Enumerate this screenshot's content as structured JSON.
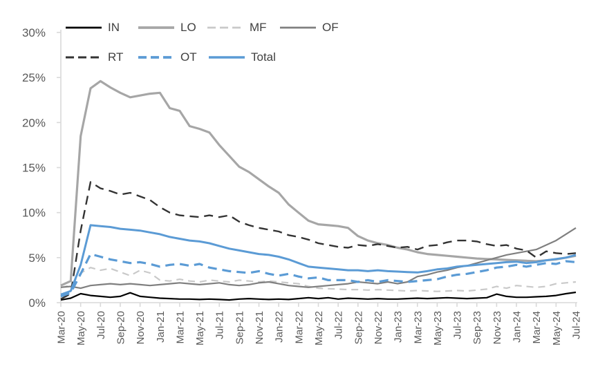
{
  "chart_data": {
    "type": "line",
    "title": "",
    "xlabel": "",
    "ylabel": "",
    "ylim": [
      0,
      30
    ],
    "yticks": [
      "0%",
      "5%",
      "10%",
      "15%",
      "20%",
      "25%",
      "30%"
    ],
    "x_label_interval": 2,
    "grid": false,
    "legend_position": "top",
    "axis_color": "#d9d9d9",
    "tick_label_color": "#595959",
    "legend_text_color": "#404040",
    "x": [
      "Mar-20",
      "Apr-20",
      "May-20",
      "Jun-20",
      "Jul-20",
      "Aug-20",
      "Sep-20",
      "Oct-20",
      "Nov-20",
      "Dec-20",
      "Jan-21",
      "Feb-21",
      "Mar-21",
      "Apr-21",
      "May-21",
      "Jun-21",
      "Jul-21",
      "Aug-21",
      "Sep-21",
      "Oct-21",
      "Nov-21",
      "Dec-21",
      "Jan-22",
      "Feb-22",
      "Mar-22",
      "Apr-22",
      "May-22",
      "Jun-22",
      "Jul-22",
      "Aug-22",
      "Sep-22",
      "Oct-22",
      "Nov-22",
      "Dec-22",
      "Jan-23",
      "Feb-23",
      "Mar-23",
      "Apr-23",
      "May-23",
      "Jun-23",
      "Jul-23",
      "Aug-23",
      "Sep-23",
      "Oct-23",
      "Nov-23",
      "Dec-23",
      "Jan-24",
      "Feb-24",
      "Mar-24",
      "Apr-24",
      "May-24",
      "Jun-24",
      "Jul-24"
    ],
    "series": [
      {
        "name": "IN",
        "color": "#000000",
        "dash": "none",
        "width": 2.2,
        "values": [
          0.3,
          0.5,
          1.0,
          0.8,
          0.7,
          0.6,
          0.7,
          1.1,
          0.7,
          0.6,
          0.5,
          0.45,
          0.4,
          0.4,
          0.35,
          0.4,
          0.35,
          0.3,
          0.4,
          0.45,
          0.4,
          0.35,
          0.4,
          0.35,
          0.45,
          0.55,
          0.45,
          0.55,
          0.4,
          0.5,
          0.45,
          0.4,
          0.45,
          0.4,
          0.4,
          0.45,
          0.5,
          0.45,
          0.5,
          0.55,
          0.5,
          0.45,
          0.5,
          0.55,
          0.95,
          0.7,
          0.6,
          0.6,
          0.65,
          0.7,
          0.8,
          1.0,
          1.15
        ]
      },
      {
        "name": "LO",
        "color": "#a6a6a6",
        "dash": "none",
        "width": 3.2,
        "values": [
          1.9,
          2.4,
          18.5,
          23.8,
          24.6,
          23.9,
          23.3,
          22.8,
          23.0,
          23.2,
          23.3,
          21.6,
          21.3,
          19.6,
          19.3,
          18.9,
          17.5,
          16.3,
          15.1,
          14.5,
          13.7,
          12.9,
          12.2,
          10.9,
          10.0,
          9.1,
          8.7,
          8.6,
          8.5,
          8.3,
          7.4,
          6.9,
          6.6,
          6.4,
          6.1,
          5.9,
          5.6,
          5.4,
          5.3,
          5.2,
          5.1,
          5.0,
          4.9,
          4.85,
          4.8,
          4.75,
          4.7,
          4.65,
          4.6,
          4.7,
          4.8,
          5.0,
          5.2
        ]
      },
      {
        "name": "MF",
        "color": "#c9c9c9",
        "dash": "10 7",
        "width": 2.2,
        "values": [
          1.7,
          1.9,
          3.3,
          3.9,
          3.6,
          3.8,
          3.4,
          3.0,
          3.6,
          3.3,
          2.5,
          2.4,
          2.6,
          2.4,
          2.3,
          2.5,
          2.4,
          2.3,
          2.5,
          2.4,
          2.3,
          2.4,
          2.3,
          2.2,
          2.1,
          1.8,
          1.6,
          1.55,
          1.5,
          1.45,
          1.45,
          1.4,
          1.45,
          1.4,
          1.35,
          1.3,
          1.35,
          1.3,
          1.25,
          1.3,
          1.35,
          1.3,
          1.4,
          1.5,
          1.8,
          1.6,
          1.9,
          1.8,
          1.7,
          1.8,
          2.1,
          2.2,
          2.3
        ]
      },
      {
        "name": "OF",
        "color": "#7f7f7f",
        "dash": "none",
        "width": 2.2,
        "values": [
          1.7,
          1.8,
          1.6,
          1.9,
          2.0,
          2.1,
          2.0,
          2.1,
          2.0,
          1.9,
          2.0,
          2.1,
          2.2,
          2.1,
          2.0,
          2.1,
          2.2,
          2.0,
          1.9,
          2.0,
          2.2,
          2.3,
          2.1,
          1.9,
          1.8,
          1.7,
          1.8,
          1.9,
          2.0,
          2.1,
          2.3,
          2.2,
          2.1,
          2.3,
          2.1,
          2.3,
          2.9,
          3.1,
          3.4,
          3.6,
          3.9,
          4.1,
          4.4,
          4.7,
          5.0,
          5.3,
          5.5,
          5.7,
          5.9,
          6.4,
          6.9,
          7.6,
          8.3
        ]
      },
      {
        "name": "RT",
        "color": "#333333",
        "dash": "13 8",
        "width": 2.4,
        "values": [
          0.4,
          1.0,
          8.0,
          13.4,
          12.7,
          12.4,
          12.0,
          12.2,
          11.8,
          11.4,
          10.6,
          10.0,
          9.7,
          9.6,
          9.5,
          9.7,
          9.5,
          9.7,
          9.0,
          8.6,
          8.3,
          8.1,
          7.9,
          7.5,
          7.3,
          7.0,
          6.6,
          6.4,
          6.2,
          6.1,
          6.4,
          6.3,
          6.5,
          6.3,
          6.1,
          6.2,
          5.9,
          6.3,
          6.4,
          6.7,
          6.9,
          6.9,
          6.8,
          6.5,
          6.3,
          6.4,
          6.0,
          5.8,
          5.0,
          5.7,
          5.5,
          5.4,
          5.5
        ]
      },
      {
        "name": "OT",
        "color": "#5b9bd5",
        "dash": "13 8",
        "width": 3.2,
        "values": [
          0.7,
          1.1,
          3.2,
          5.4,
          5.1,
          4.8,
          4.6,
          4.4,
          4.5,
          4.3,
          4.0,
          4.2,
          4.3,
          4.1,
          4.3,
          3.9,
          3.7,
          3.5,
          3.4,
          3.3,
          3.5,
          3.2,
          3.0,
          3.2,
          2.9,
          2.7,
          2.8,
          2.5,
          2.5,
          2.5,
          2.3,
          2.5,
          2.3,
          2.5,
          2.4,
          2.3,
          2.4,
          2.5,
          2.6,
          2.9,
          3.1,
          3.2,
          3.4,
          3.6,
          3.9,
          4.0,
          4.2,
          4.0,
          4.2,
          4.4,
          4.3,
          4.6,
          4.5
        ]
      },
      {
        "name": "Total",
        "color": "#5b9bd5",
        "dash": "none",
        "width": 3.0,
        "values": [
          0.9,
          1.3,
          4.2,
          8.6,
          8.5,
          8.4,
          8.2,
          8.1,
          8.0,
          7.8,
          7.6,
          7.3,
          7.1,
          6.9,
          6.8,
          6.6,
          6.3,
          6.0,
          5.8,
          5.6,
          5.4,
          5.3,
          5.1,
          4.8,
          4.4,
          4.0,
          3.9,
          3.8,
          3.7,
          3.6,
          3.6,
          3.5,
          3.6,
          3.5,
          3.45,
          3.4,
          3.35,
          3.5,
          3.7,
          3.8,
          4.0,
          4.1,
          4.2,
          4.3,
          4.4,
          4.5,
          4.55,
          4.4,
          4.5,
          4.7,
          4.85,
          5.0,
          5.3
        ]
      }
    ],
    "legend_rows": [
      [
        "IN",
        "LO",
        "MF",
        "OF"
      ],
      [
        "RT",
        "OT",
        "Total"
      ]
    ]
  }
}
